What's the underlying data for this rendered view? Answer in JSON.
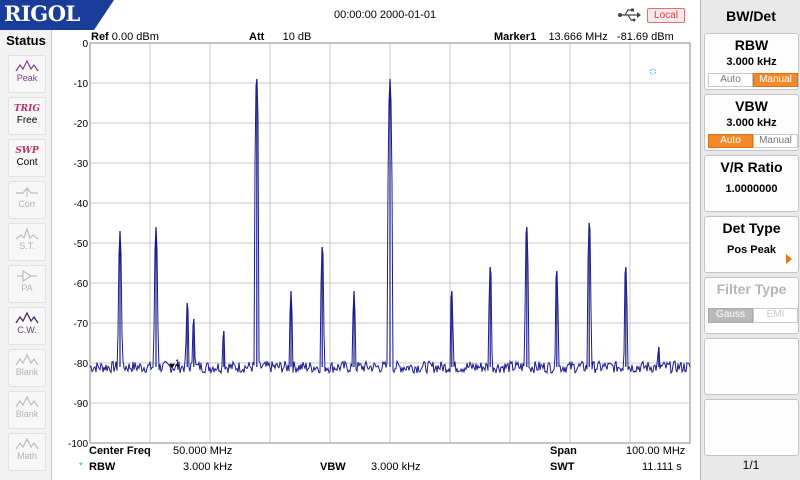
{
  "header": {
    "logo": "RIGOL",
    "datetime": "00:00:00 2000-01-01",
    "local_button": "Local"
  },
  "status": {
    "title": "Status",
    "items": [
      {
        "label": "Peak",
        "state": "normal"
      },
      {
        "top": "TRIG",
        "label": "Free",
        "state": "normal"
      },
      {
        "top": "SWP",
        "label": "Cont",
        "state": "normal"
      },
      {
        "label": "Corr",
        "state": "dim"
      },
      {
        "label": "S.T.",
        "state": "dim"
      },
      {
        "label": "PA",
        "state": "dim"
      },
      {
        "label": "C.W.",
        "state": "active"
      },
      {
        "label": "Blank",
        "state": "dim"
      },
      {
        "label": "Blank",
        "state": "dim"
      },
      {
        "label": "Math",
        "state": "dim"
      }
    ]
  },
  "plot": {
    "ref_label": "Ref",
    "ref_value": "0.00 dBm",
    "att_label": "Att",
    "att_value": "10 dB",
    "marker_label": "Marker1",
    "marker_freq": "13.666 MHz",
    "marker_level": "-81.69 dBm",
    "marker_number": "1"
  },
  "bottom": {
    "center_label": "Center Freq",
    "center_value": "50.000 MHz",
    "span_label": "Span",
    "span_value": "100.00 MHz",
    "rbw_label": "RBW",
    "rbw_value": "3.000 kHz",
    "vbw_label": "VBW",
    "vbw_value": "3.000 kHz",
    "swt_label": "SWT",
    "swt_value": "11.111 s"
  },
  "menu": {
    "title": "BW/Det",
    "rbw": {
      "title": "RBW",
      "value": "3.000 kHz",
      "auto": "Auto",
      "manual": "Manual",
      "selected": "Manual"
    },
    "vbw": {
      "title": "VBW",
      "value": "3.000 kHz",
      "auto": "Auto",
      "manual": "Manual",
      "selected": "Auto"
    },
    "vr_ratio": {
      "title": "V/R Ratio",
      "value": "1.0000000"
    },
    "det_type": {
      "title": "Det Type",
      "value": "Pos Peak"
    },
    "filter_type": {
      "title": "Filter Type",
      "gauss": "Gauss",
      "emi": "EMI",
      "selected": "Gauss"
    },
    "page": "1/1"
  },
  "colors": {
    "trace": "#1a1a8c",
    "grid": "#c8c8c8",
    "accent": "#f08a2a",
    "logo_bg": "#1a3d9a"
  },
  "chart_data": {
    "type": "line",
    "xlabel": "",
    "ylabel": "",
    "xlim": [
      0,
      100
    ],
    "ylim": [
      -100,
      0
    ],
    "y_ticks": [
      "0",
      "-10",
      "-20",
      "-30",
      "-40",
      "-50",
      "-60",
      "-70",
      "-80",
      "-90",
      "-100"
    ],
    "noise_floor": -81,
    "peaks": [
      {
        "x": 5.0,
        "y": -47
      },
      {
        "x": 11.0,
        "y": -46
      },
      {
        "x": 16.2,
        "y": -65
      },
      {
        "x": 17.3,
        "y": -69
      },
      {
        "x": 22.3,
        "y": -72
      },
      {
        "x": 27.8,
        "y": -9
      },
      {
        "x": 33.5,
        "y": -62
      },
      {
        "x": 38.7,
        "y": -51
      },
      {
        "x": 44.0,
        "y": -62
      },
      {
        "x": 50.0,
        "y": -9
      },
      {
        "x": 60.3,
        "y": -62
      },
      {
        "x": 66.7,
        "y": -56
      },
      {
        "x": 72.8,
        "y": -46
      },
      {
        "x": 77.8,
        "y": -57
      },
      {
        "x": 83.2,
        "y": -45
      },
      {
        "x": 89.3,
        "y": -56
      },
      {
        "x": 94.8,
        "y": -76
      }
    ],
    "marker": {
      "x": 13.666,
      "y": -81.69
    }
  }
}
